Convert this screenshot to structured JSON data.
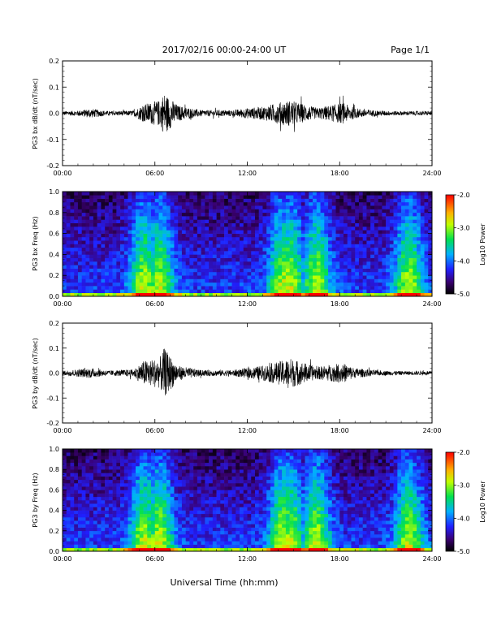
{
  "header": {
    "date_title": "2017/02/16  00:00-24:00 UT",
    "page_label": "Page 1/1"
  },
  "chart_data": [
    {
      "type": "line",
      "panel": "bx-dbdt",
      "ylabel": "PG3 bx dB/dt (nT/sec)",
      "ylim": [
        -0.2,
        0.2
      ],
      "yticks": [
        0.2,
        0.1,
        0.0,
        -0.1,
        -0.2
      ],
      "ytick_labels": [
        "0.2",
        "0.1",
        "0.0",
        "-0.1",
        "-0.2"
      ],
      "xlim": [
        0,
        24
      ],
      "xticks": [
        0,
        6,
        12,
        18,
        24
      ],
      "xtick_labels": [
        "00:00",
        "06:00",
        "12:00",
        "18:00",
        "24:00"
      ],
      "x": [
        0,
        1,
        1.8,
        3,
        4.6,
        5.3,
        6.3,
        6.6,
        7.5,
        9,
        11,
        12,
        13,
        14.3,
        14.8,
        16.5,
        18.2,
        19,
        20.5,
        22,
        24
      ],
      "amplitude": [
        0.008,
        0.01,
        0.018,
        0.008,
        0.01,
        0.035,
        0.05,
        0.08,
        0.03,
        0.012,
        0.012,
        0.02,
        0.025,
        0.045,
        0.05,
        0.02,
        0.04,
        0.02,
        0.01,
        0.008,
        0.008
      ]
    },
    {
      "type": "heatmap",
      "panel": "bx-spectrogram",
      "ylabel": "PG3 bx Freq (Hz)",
      "ylim": [
        0.0,
        1.0
      ],
      "yticks": [
        1.0,
        0.8,
        0.6,
        0.4,
        0.2,
        0.0
      ],
      "ytick_labels": [
        "1.0",
        "0.8",
        "0.6",
        "0.4",
        "0.2",
        "0.0"
      ],
      "xlim": [
        0,
        24
      ],
      "xticks": [
        0,
        6,
        12,
        18,
        24
      ],
      "xtick_labels": [
        "00:00",
        "06:00",
        "12:00",
        "18:00",
        "24:00"
      ],
      "colorbar": {
        "label": "Log10 Power",
        "range": [
          -5.0,
          -2.0
        ],
        "ticks": [
          -2.0,
          -3.0,
          -4.0,
          -5.0
        ],
        "tick_labels": [
          "-2.0",
          "-3.0",
          "-4.0",
          "-5.0"
        ]
      },
      "activity_centers_hours": [
        5.3,
        6.3,
        14.3,
        14.8,
        16.5,
        22.5
      ]
    },
    {
      "type": "line",
      "panel": "by-dbdt",
      "ylabel": "PG3 by dB/dt (nT/sec)",
      "ylim": [
        -0.2,
        0.2
      ],
      "yticks": [
        0.2,
        0.1,
        0.0,
        -0.1,
        -0.2
      ],
      "ytick_labels": [
        "0.2",
        "0.1",
        "0.0",
        "-0.1",
        "-0.2"
      ],
      "xlim": [
        0,
        24
      ],
      "xticks": [
        0,
        6,
        12,
        18,
        24
      ],
      "xtick_labels": [
        "00:00",
        "06:00",
        "12:00",
        "18:00",
        "24:00"
      ],
      "x": [
        0,
        1,
        1.8,
        3,
        4.6,
        5.3,
        6.3,
        6.6,
        7.5,
        9,
        11,
        12,
        13,
        14.3,
        14.8,
        16.5,
        18.2,
        19,
        20.5,
        22,
        24
      ],
      "amplitude": [
        0.01,
        0.015,
        0.02,
        0.01,
        0.015,
        0.05,
        0.06,
        0.1,
        0.03,
        0.012,
        0.012,
        0.02,
        0.03,
        0.05,
        0.06,
        0.025,
        0.04,
        0.02,
        0.01,
        0.008,
        0.008
      ]
    },
    {
      "type": "heatmap",
      "panel": "by-spectrogram",
      "ylabel": "PG3 by Freq (Hz)",
      "ylim": [
        0.0,
        1.0
      ],
      "yticks": [
        1.0,
        0.8,
        0.6,
        0.4,
        0.2,
        0.0
      ],
      "ytick_labels": [
        "1.0",
        "0.8",
        "0.6",
        "0.4",
        "0.2",
        "0.0"
      ],
      "xlim": [
        0,
        24
      ],
      "xticks": [
        0,
        6,
        12,
        18,
        24
      ],
      "xtick_labels": [
        "00:00",
        "06:00",
        "12:00",
        "18:00",
        "24:00"
      ],
      "colorbar": {
        "label": "Log10 Power",
        "range": [
          -5.0,
          -2.0
        ],
        "ticks": [
          -2.0,
          -3.0,
          -4.0,
          -5.0
        ],
        "tick_labels": [
          "-2.0",
          "-3.0",
          "-4.0",
          "-5.0"
        ]
      },
      "activity_centers_hours": [
        5.3,
        6.3,
        14.3,
        14.8,
        16.5,
        22.5
      ]
    }
  ],
  "xlabel": "Universal Time (hh:mm)"
}
